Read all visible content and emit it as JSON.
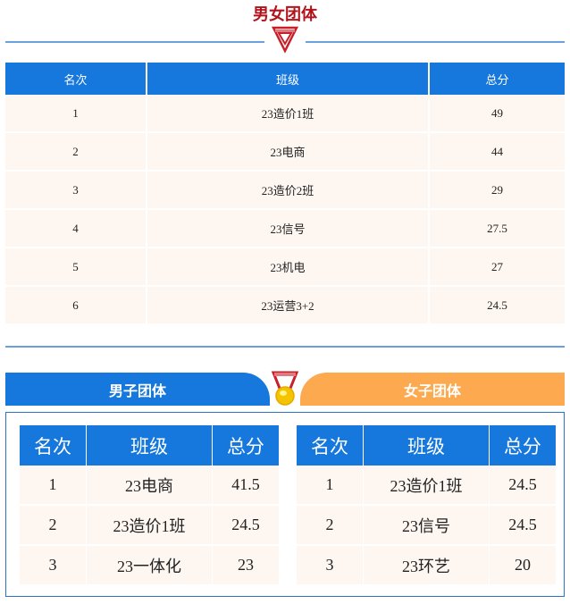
{
  "overall": {
    "title": "男女团体",
    "headers": [
      "名次",
      "班级",
      "总分"
    ],
    "rows": [
      [
        "1",
        "23造价1班",
        "49"
      ],
      [
        "2",
        "23电商",
        "44"
      ],
      [
        "3",
        "23造价2班",
        "29"
      ],
      [
        "4",
        "23信号",
        "27.5"
      ],
      [
        "5",
        "23机电",
        "27"
      ],
      [
        "6",
        "23运营3+2",
        "24.5"
      ]
    ]
  },
  "men": {
    "title": "男子团体",
    "headers": [
      "名次",
      "班级",
      "总分"
    ],
    "rows": [
      [
        "1",
        "23电商",
        "41.5"
      ],
      [
        "2",
        "23造价1班",
        "24.5"
      ],
      [
        "3",
        "23一体化",
        "23"
      ]
    ]
  },
  "women": {
    "title": "女子团体",
    "headers": [
      "名次",
      "班级",
      "总分"
    ],
    "rows": [
      [
        "1",
        "23造价1班",
        "24.5"
      ],
      [
        "2",
        "23信号",
        "24.5"
      ],
      [
        "3",
        "23环艺",
        "20"
      ]
    ]
  },
  "colors": {
    "blue": "#1677dc",
    "orange": "#fda94f",
    "title_red": "#b3121b",
    "row_bg": "#fef7f1"
  },
  "icons": [
    "ribbon-chevron-icon",
    "medal-icon"
  ]
}
